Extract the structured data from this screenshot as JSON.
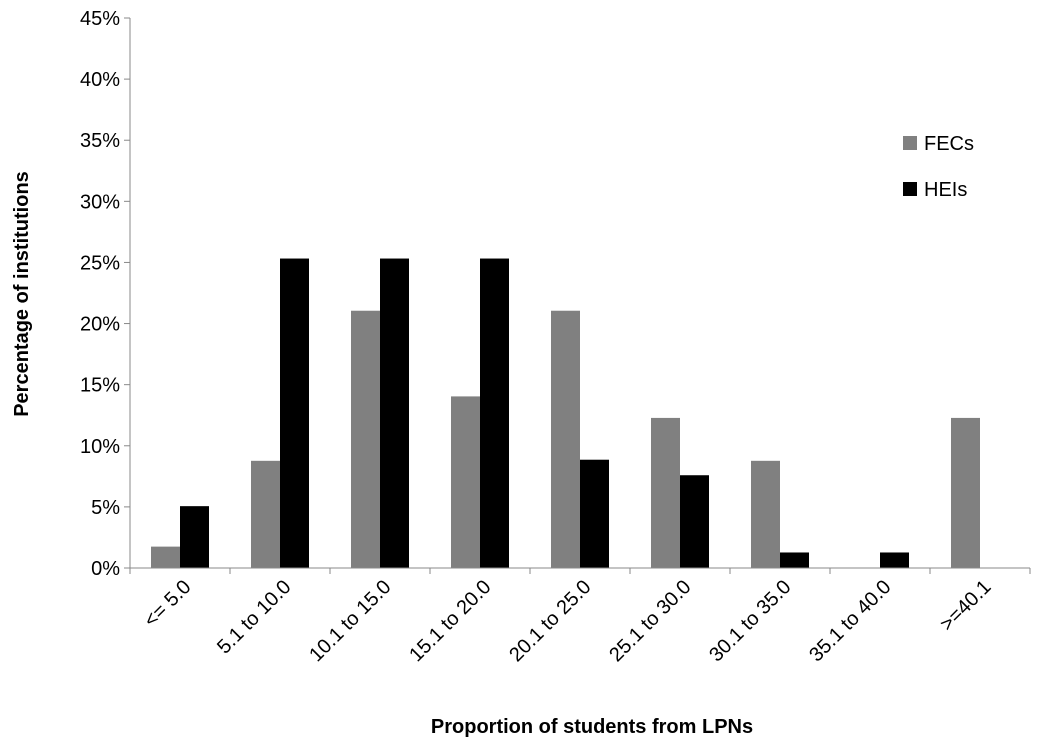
{
  "chart_data": {
    "type": "bar",
    "title": "",
    "xlabel": "Proportion of students from LPNs",
    "ylabel": "Percentage of institutions",
    "categories": [
      "<= 5.0",
      "5.1 to 10.0",
      "10.1 to 15.0",
      "15.1 to 20.0",
      "20.1 to 25.0",
      "25.1 to 30.0",
      "30.1 to 35.0",
      "35.1 to 40.0",
      ">=40.1"
    ],
    "series": [
      {
        "name": "FECs",
        "color": "#808080",
        "values": [
          1.75,
          8.77,
          21.05,
          14.04,
          21.05,
          12.28,
          8.77,
          0,
          12.28
        ]
      },
      {
        "name": "HEIs",
        "color": "#000000",
        "values": [
          5.06,
          25.32,
          25.32,
          25.32,
          8.86,
          7.59,
          1.27,
          1.27,
          0
        ]
      }
    ],
    "ylim": [
      0,
      45
    ],
    "yticks": [
      0,
      5,
      10,
      15,
      20,
      25,
      30,
      35,
      40,
      45
    ],
    "ytick_labels": [
      "0%",
      "5%",
      "10%",
      "15%",
      "20%",
      "25%",
      "30%",
      "35%",
      "40%",
      "45%"
    ],
    "grid": false,
    "legend_position": "right"
  }
}
